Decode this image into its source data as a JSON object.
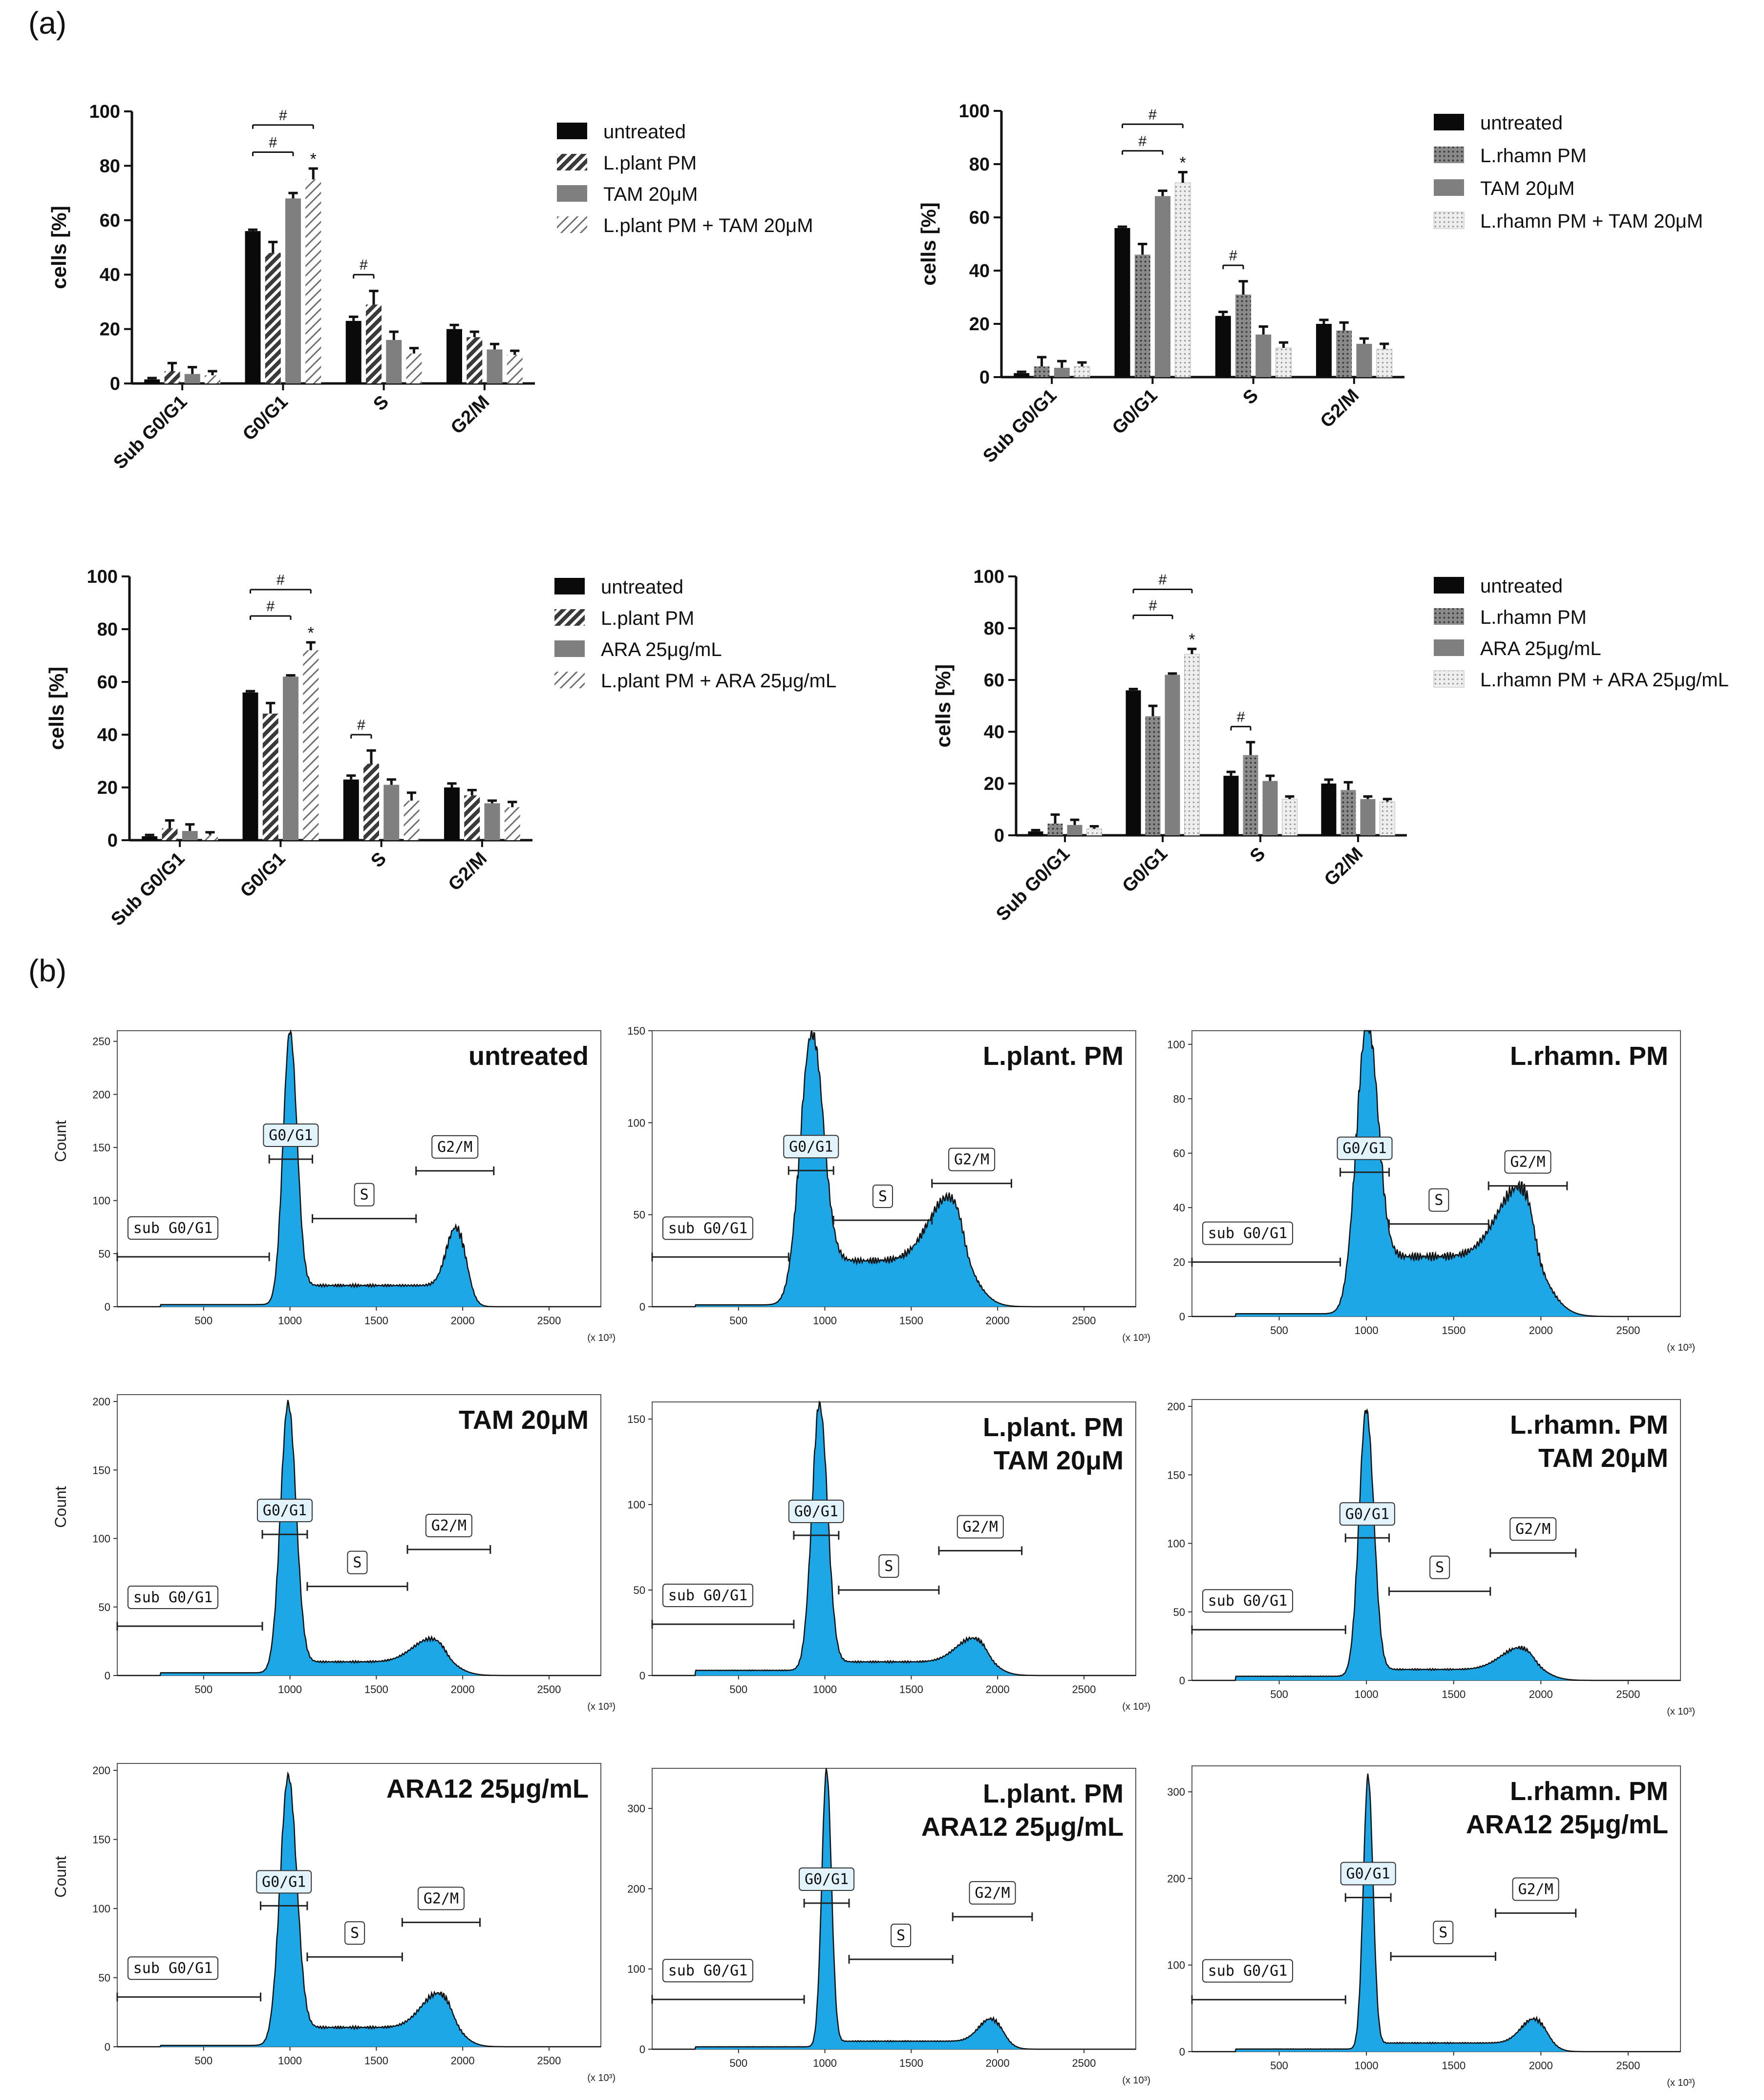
{
  "figure": {
    "panel_a_label": "(a)",
    "panel_b_label": "(b)"
  },
  "colors": {
    "black": "#0a0a0a",
    "dark_hatch": "#3a3a3a",
    "gray": "#7f7f7f",
    "light_hatch": "#6e6e6e",
    "dark_dots": "#777777",
    "light_dots": "#dcdcdc",
    "histogram_fill": "#1ea7e6",
    "histogram_line": "#111111"
  },
  "chart_data": [
    {
      "type": "bar",
      "id": "bar-plant-tam",
      "ylabel": "cells [%]",
      "ylim": [
        0,
        100
      ],
      "yticks": [
        "0",
        "20",
        "40",
        "60",
        "80",
        "100"
      ],
      "categories": [
        "Sub G0/G1",
        "G0/G1",
        "S",
        "G2/M"
      ],
      "series": [
        {
          "name": "untreated",
          "style": "black",
          "values": [
            1.5,
            56,
            23,
            20
          ],
          "errors": [
            0.5,
            0.5,
            1.5,
            1.5
          ]
        },
        {
          "name": "L.plant PM",
          "style": "dark_hatch",
          "values": [
            4.5,
            48,
            29,
            17
          ],
          "errors": [
            3,
            4,
            5,
            2
          ]
        },
        {
          "name": "TAM 20μM",
          "style": "gray",
          "values": [
            3.5,
            68,
            16,
            12.5
          ],
          "errors": [
            2.5,
            2,
            3,
            2
          ]
        },
        {
          "name": "L.plant PM + TAM 20μM",
          "style": "light_hatch",
          "values": [
            3,
            75,
            11,
            10.5
          ],
          "errors": [
            1.5,
            4,
            2,
            1.5
          ]
        }
      ],
      "annotations": [
        {
          "text": "#",
          "from": [
            1,
            0
          ],
          "to": [
            1,
            3
          ]
        },
        {
          "text": "#",
          "from": [
            1,
            0
          ],
          "to": [
            1,
            2
          ]
        },
        {
          "text": "#",
          "from": [
            2,
            0
          ],
          "to": [
            2,
            1
          ]
        },
        {
          "text": "*",
          "at": [
            1,
            3
          ]
        }
      ]
    },
    {
      "type": "bar",
      "id": "bar-rhamn-tam",
      "ylabel": "cells [%]",
      "ylim": [
        0,
        100
      ],
      "yticks": [
        "0",
        "20",
        "40",
        "60",
        "80",
        "100"
      ],
      "categories": [
        "Sub G0/G1",
        "G0/G1",
        "S",
        "G2/M"
      ],
      "series": [
        {
          "name": "untreated",
          "style": "black",
          "values": [
            1.5,
            56,
            23,
            20
          ],
          "errors": [
            0.5,
            0.5,
            1.5,
            1.5
          ]
        },
        {
          "name": "L.rhamn PM",
          "style": "dark_dots",
          "values": [
            4,
            46,
            31,
            17.5
          ],
          "errors": [
            3.5,
            4,
            5,
            3
          ]
        },
        {
          "name": "TAM 20μM",
          "style": "gray",
          "values": [
            3.5,
            68,
            16,
            12.5
          ],
          "errors": [
            2.5,
            2,
            3,
            2
          ]
        },
        {
          "name": "L.rhamn PM + TAM 20μM",
          "style": "light_dots",
          "values": [
            4,
            73,
            11,
            10.5
          ],
          "errors": [
            1.5,
            4,
            2,
            2
          ]
        }
      ],
      "annotations": [
        {
          "text": "#",
          "from": [
            1,
            0
          ],
          "to": [
            1,
            3
          ]
        },
        {
          "text": "#",
          "from": [
            1,
            0
          ],
          "to": [
            1,
            2
          ]
        },
        {
          "text": "#",
          "from": [
            2,
            0
          ],
          "to": [
            2,
            1
          ]
        },
        {
          "text": "*",
          "at": [
            1,
            3
          ]
        }
      ]
    },
    {
      "type": "bar",
      "id": "bar-plant-ara",
      "ylabel": "cells [%]",
      "ylim": [
        0,
        100
      ],
      "yticks": [
        "0",
        "20",
        "40",
        "60",
        "80",
        "100"
      ],
      "categories": [
        "Sub G0/G1",
        "G0/G1",
        "S",
        "G2/M"
      ],
      "series": [
        {
          "name": "untreated",
          "style": "black",
          "values": [
            1.5,
            56,
            23,
            20
          ],
          "errors": [
            0.5,
            0.5,
            1.5,
            1.5
          ]
        },
        {
          "name": "L.plant PM",
          "style": "dark_hatch",
          "values": [
            4.5,
            48,
            29,
            17
          ],
          "errors": [
            3,
            4,
            5,
            2
          ]
        },
        {
          "name": "ARA 25μg/mL",
          "style": "gray",
          "values": [
            3.5,
            62,
            21,
            14
          ],
          "errors": [
            2.5,
            0.5,
            2,
            1
          ]
        },
        {
          "name": "L.plant PM + ARA 25μg/mL",
          "style": "light_hatch",
          "values": [
            2,
            72,
            15,
            12.5
          ],
          "errors": [
            1,
            3,
            3,
            2
          ]
        }
      ],
      "annotations": [
        {
          "text": "#",
          "from": [
            1,
            0
          ],
          "to": [
            1,
            3
          ]
        },
        {
          "text": "#",
          "from": [
            1,
            0
          ],
          "to": [
            1,
            2
          ]
        },
        {
          "text": "#",
          "from": [
            2,
            0
          ],
          "to": [
            2,
            1
          ]
        },
        {
          "text": "*",
          "at": [
            1,
            3
          ]
        }
      ]
    },
    {
      "type": "bar",
      "id": "bar-rhamn-ara",
      "ylabel": "cells [%]",
      "ylim": [
        0,
        100
      ],
      "yticks": [
        "0",
        "20",
        "40",
        "60",
        "80",
        "100"
      ],
      "categories": [
        "Sub G0/G1",
        "G0/G1",
        "S",
        "G2/M"
      ],
      "series": [
        {
          "name": "untreated",
          "style": "black",
          "values": [
            1.5,
            56,
            23,
            20
          ],
          "errors": [
            0.5,
            0.5,
            1.5,
            1.5
          ]
        },
        {
          "name": "L.rhamn PM",
          "style": "dark_dots",
          "values": [
            4.5,
            46,
            31,
            17.5
          ],
          "errors": [
            3.5,
            4,
            5,
            3
          ]
        },
        {
          "name": "ARA 25μg/mL",
          "style": "gray",
          "values": [
            4,
            62,
            21,
            14
          ],
          "errors": [
            2,
            0.5,
            2,
            1
          ]
        },
        {
          "name": "L.rhamn PM + ARA 25μg/mL",
          "style": "light_dots",
          "values": [
            2.5,
            70,
            14,
            13
          ],
          "errors": [
            1,
            2,
            1,
            1
          ]
        }
      ],
      "annotations": [
        {
          "text": "#",
          "from": [
            1,
            0
          ],
          "to": [
            1,
            3
          ]
        },
        {
          "text": "#",
          "from": [
            1,
            0
          ],
          "to": [
            1,
            2
          ]
        },
        {
          "text": "#",
          "from": [
            2,
            0
          ],
          "to": [
            2,
            1
          ]
        },
        {
          "text": "*",
          "at": [
            1,
            3
          ]
        }
      ]
    },
    {
      "type": "area",
      "id": "hist-untreated",
      "title_lines": [
        "untreated"
      ],
      "ylabel": "Count",
      "xunit": "(x 10³)",
      "xlim": [
        0,
        2800
      ],
      "ylim": [
        0,
        260
      ],
      "yticks": [
        "0",
        "50",
        "100",
        "150",
        "200",
        "250"
      ],
      "xticks": [
        "500",
        "1000",
        "1500",
        "2000",
        "2500"
      ],
      "peak": 255,
      "g0_pos": 1000,
      "g0_w": 40,
      "sbase": 20,
      "g2": 55,
      "g2_pos": 1960,
      "g2_w": 55,
      "sub_lvl": 2,
      "gates": [
        {
          "label": "sub G0/G1",
          "x1": 0,
          "x2": 880,
          "level": 47
        },
        {
          "label": "G0/G1",
          "x1": 880,
          "x2": 1130,
          "level": 139
        },
        {
          "label": "S",
          "x1": 1130,
          "x2": 1730,
          "level": 83
        },
        {
          "label": "G2/M",
          "x1": 1730,
          "x2": 2180,
          "level": 128
        }
      ]
    },
    {
      "type": "area",
      "id": "hist-plant",
      "title_lines": [
        "L.plant. PM"
      ],
      "ylabel": "",
      "xunit": "(x 10³)",
      "xlim": [
        0,
        2800
      ],
      "ylim": [
        0,
        150
      ],
      "yticks": [
        "0",
        "50",
        "100",
        "150"
      ],
      "xticks": [
        "500",
        "1000",
        "1500",
        "2000",
        "2500"
      ],
      "peak": 143,
      "g0_pos": 920,
      "g0_w": 65,
      "sbase": 25,
      "g2": 35,
      "g2_pos": 1720,
      "g2_w": 120,
      "sub_lvl": 1,
      "gates": [
        {
          "label": "sub G0/G1",
          "x1": 0,
          "x2": 790,
          "level": 27
        },
        {
          "label": "G0/G1",
          "x1": 790,
          "x2": 1050,
          "level": 74
        },
        {
          "label": "S",
          "x1": 1050,
          "x2": 1620,
          "level": 47
        },
        {
          "label": "G2/M",
          "x1": 1620,
          "x2": 2080,
          "level": 67
        }
      ]
    },
    {
      "type": "area",
      "id": "hist-rhamn",
      "title_lines": [
        "L.rhamn. PM"
      ],
      "ylabel": "",
      "xunit": "(x 10³)",
      "xlim": [
        0,
        2800
      ],
      "ylim": [
        0,
        105
      ],
      "yticks": [
        "0",
        "20",
        "40",
        "60",
        "80",
        "100"
      ],
      "xticks": [
        "500",
        "1000",
        "1500",
        "2000",
        "2500"
      ],
      "peak": 103,
      "g0_pos": 1000,
      "g0_w": 60,
      "sbase": 22,
      "g2": 26,
      "g2_pos": 1880,
      "g2_w": 130,
      "sub_lvl": 1,
      "gates": [
        {
          "label": "sub G0/G1",
          "x1": 0,
          "x2": 850,
          "level": 20
        },
        {
          "label": "G0/G1",
          "x1": 850,
          "x2": 1130,
          "level": 53
        },
        {
          "label": "S",
          "x1": 1130,
          "x2": 1700,
          "level": 34
        },
        {
          "label": "G2/M",
          "x1": 1700,
          "x2": 2150,
          "level": 48
        }
      ]
    },
    {
      "type": "area",
      "id": "hist-tam",
      "title_lines": [
        "TAM 20μM"
      ],
      "ylabel": "Count",
      "xunit": "(x 10³)",
      "xlim": [
        0,
        2800
      ],
      "ylim": [
        0,
        205
      ],
      "yticks": [
        "0",
        "50",
        "100",
        "150",
        "200"
      ],
      "xticks": [
        "500",
        "1000",
        "1500",
        "2000",
        "2500"
      ],
      "peak": 196,
      "g0_pos": 990,
      "g0_w": 45,
      "sbase": 10,
      "g2": 17,
      "g2_pos": 1820,
      "g2_w": 110,
      "sub_lvl": 2,
      "gates": [
        {
          "label": "sub G0/G1",
          "x1": 0,
          "x2": 840,
          "level": 36
        },
        {
          "label": "G0/G1",
          "x1": 840,
          "x2": 1100,
          "level": 103
        },
        {
          "label": "S",
          "x1": 1100,
          "x2": 1680,
          "level": 65
        },
        {
          "label": "G2/M",
          "x1": 1680,
          "x2": 2160,
          "level": 92
        }
      ]
    },
    {
      "type": "area",
      "id": "hist-plant-tam",
      "title_lines": [
        "L.plant. PM",
        "TAM 20μM"
      ],
      "ylabel": "",
      "xunit": "(x 10³)",
      "xlim": [
        0,
        2800
      ],
      "ylim": [
        0,
        160
      ],
      "yticks": [
        "0",
        "50",
        "100",
        "150"
      ],
      "xticks": [
        "500",
        "1000",
        "1500",
        "2000",
        "2500"
      ],
      "peak": 156,
      "g0_pos": 970,
      "g0_w": 45,
      "sbase": 8,
      "g2": 14,
      "g2_pos": 1860,
      "g2_w": 100,
      "sub_lvl": 3,
      "gates": [
        {
          "label": "sub G0/G1",
          "x1": 0,
          "x2": 820,
          "level": 30
        },
        {
          "label": "G0/G1",
          "x1": 820,
          "x2": 1080,
          "level": 82
        },
        {
          "label": "S",
          "x1": 1080,
          "x2": 1660,
          "level": 50
        },
        {
          "label": "G2/M",
          "x1": 1660,
          "x2": 2140,
          "level": 73
        }
      ]
    },
    {
      "type": "area",
      "id": "hist-rhamn-tam",
      "title_lines": [
        "L.rhamn. PM",
        "TAM 20μM"
      ],
      "ylabel": "",
      "xunit": "(x 10³)",
      "xlim": [
        0,
        2800
      ],
      "ylim": [
        0,
        205
      ],
      "yticks": [
        "0",
        "50",
        "100",
        "150",
        "200"
      ],
      "xticks": [
        "500",
        "1000",
        "1500",
        "2000",
        "2500"
      ],
      "peak": 195,
      "g0_pos": 1000,
      "g0_w": 42,
      "sbase": 8,
      "g2": 16,
      "g2_pos": 1880,
      "g2_w": 110,
      "sub_lvl": 3,
      "gates": [
        {
          "label": "sub G0/G1",
          "x1": 0,
          "x2": 880,
          "level": 37
        },
        {
          "label": "G0/G1",
          "x1": 880,
          "x2": 1130,
          "level": 104
        },
        {
          "label": "S",
          "x1": 1130,
          "x2": 1710,
          "level": 65
        },
        {
          "label": "G2/M",
          "x1": 1710,
          "x2": 2200,
          "level": 93
        }
      ]
    },
    {
      "type": "area",
      "id": "hist-ara",
      "title_lines": [
        "ARA12 25μg/mL"
      ],
      "ylabel": "Count",
      "xunit": "(x 10³)",
      "xlim": [
        0,
        2800
      ],
      "ylim": [
        0,
        205
      ],
      "yticks": [
        "0",
        "50",
        "100",
        "150",
        "200"
      ],
      "xticks": [
        "500",
        "1000",
        "1500",
        "2000",
        "2500"
      ],
      "peak": 193,
      "g0_pos": 990,
      "g0_w": 48,
      "sbase": 14,
      "g2": 25,
      "g2_pos": 1860,
      "g2_w": 100,
      "sub_lvl": 1,
      "gates": [
        {
          "label": "sub G0/G1",
          "x1": 0,
          "x2": 830,
          "level": 36
        },
        {
          "label": "G0/G1",
          "x1": 830,
          "x2": 1100,
          "level": 102
        },
        {
          "label": "S",
          "x1": 1100,
          "x2": 1650,
          "level": 65
        },
        {
          "label": "G2/M",
          "x1": 1650,
          "x2": 2100,
          "level": 90
        }
      ]
    },
    {
      "type": "area",
      "id": "hist-plant-ara",
      "title_lines": [
        "L.plant. PM",
        "ARA12 25μg/mL"
      ],
      "ylabel": "",
      "xunit": "(x 10³)",
      "xlim": [
        0,
        2800
      ],
      "ylim": [
        0,
        350
      ],
      "yticks": [
        "0",
        "100",
        "200",
        "300"
      ],
      "xticks": [
        "500",
        "1000",
        "1500",
        "2000",
        "2500"
      ],
      "peak": 345,
      "g0_pos": 1010,
      "g0_w": 28,
      "sbase": 10,
      "g2": 28,
      "g2_pos": 1960,
      "g2_w": 70,
      "sub_lvl": 3,
      "gates": [
        {
          "label": "sub G0/G1",
          "x1": 0,
          "x2": 880,
          "level": 62
        },
        {
          "label": "G0/G1",
          "x1": 880,
          "x2": 1140,
          "level": 182
        },
        {
          "label": "S",
          "x1": 1140,
          "x2": 1740,
          "level": 112
        },
        {
          "label": "G2/M",
          "x1": 1740,
          "x2": 2200,
          "level": 165
        }
      ]
    },
    {
      "type": "area",
      "id": "hist-rhamn-ara",
      "title_lines": [
        "L.rhamn. PM",
        "ARA12 25μg/mL"
      ],
      "ylabel": "",
      "xunit": "(x 10³)",
      "xlim": [
        0,
        2800
      ],
      "ylim": [
        0,
        330
      ],
      "yticks": [
        "0",
        "100",
        "200",
        "300"
      ],
      "xticks": [
        "500",
        "1000",
        "1500",
        "2000",
        "2500"
      ],
      "peak": 315,
      "g0_pos": 1010,
      "g0_w": 28,
      "sbase": 10,
      "g2": 28,
      "g2_pos": 1960,
      "g2_w": 75,
      "sub_lvl": 3,
      "gates": [
        {
          "label": "sub G0/G1",
          "x1": 0,
          "x2": 880,
          "level": 60
        },
        {
          "label": "G0/G1",
          "x1": 880,
          "x2": 1140,
          "level": 178
        },
        {
          "label": "S",
          "x1": 1140,
          "x2": 1740,
          "level": 110
        },
        {
          "label": "G2/M",
          "x1": 1740,
          "x2": 2200,
          "level": 160
        }
      ]
    }
  ]
}
